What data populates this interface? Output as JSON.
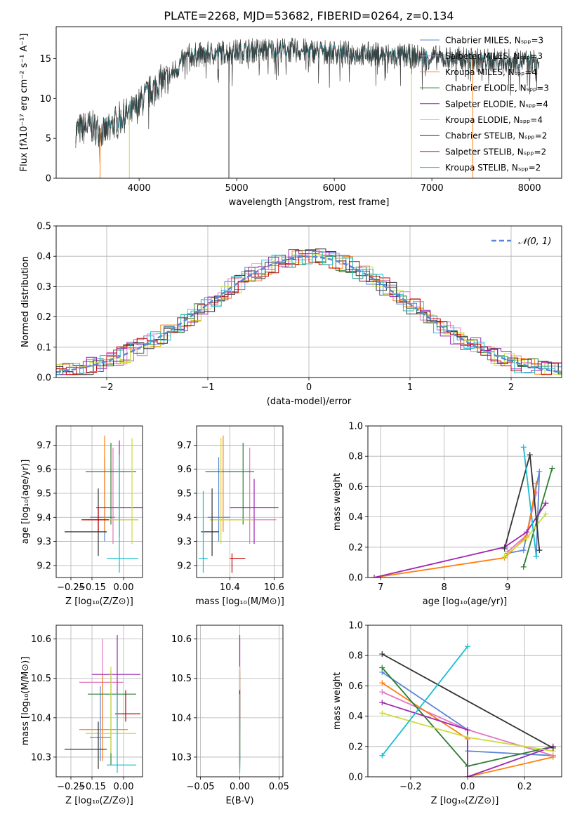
{
  "figure": {
    "title": "PLATE=2268, MJD=53682, FIBERID=0264, z=0.134"
  },
  "colors": {
    "series": [
      "#5b86d4",
      "#e377c2",
      "#ff7f0e",
      "#2e7d32",
      "#9c27b0",
      "#cddc39",
      "#333333",
      "#c00000",
      "#17becf"
    ],
    "grid": "#b0b0b0",
    "gaussian": "#5b86d4"
  },
  "chart_data": [
    {
      "id": "spectrum",
      "type": "line",
      "xlabel": "wavelength [Angstrom, rest frame]",
      "ylabel": "Flux [fλ10⁻¹⁷ erg cm⁻² s⁻¹ A⁻¹]",
      "xlim": [
        3150,
        8330
      ],
      "ylim": [
        0,
        19
      ],
      "xticks": [
        4000,
        5000,
        6000,
        7000,
        8000
      ],
      "yticks": [
        0,
        5,
        10,
        15
      ],
      "grid": false,
      "legend_position": "right",
      "legend": [
        "Chabrier MILES, Nₛₚₚ=3",
        "Salpeter MILES, Nₛₚₚ=3",
        "Kroupa MILES, Nₛₚₚ=4",
        "Chabrier ELODIE, Nₛₚₚ=3",
        "Salpeter ELODIE, Nₛₚₚ=4",
        "Kroupa ELODIE, Nₛₚₚ=4",
        "Chabrier STELIB, Nₛₚₚ=2",
        "Salpeter STELIB, Nₛₚₚ=2",
        "Kroupa STELIB, Nₛₚₚ=2"
      ],
      "continuum": [
        [
          3350,
          6.0
        ],
        [
          3500,
          6.5
        ],
        [
          3650,
          5.8
        ],
        [
          3800,
          7.5
        ],
        [
          3950,
          8.5
        ],
        [
          4050,
          10.0
        ],
        [
          4200,
          12.0
        ],
        [
          4300,
          12.6
        ],
        [
          4400,
          14.0
        ],
        [
          4500,
          15.4
        ],
        [
          4700,
          15.6
        ],
        [
          4900,
          15.8
        ],
        [
          5100,
          16.0
        ],
        [
          5400,
          16.1
        ],
        [
          5700,
          16.0
        ],
        [
          6000,
          15.8
        ],
        [
          6300,
          15.6
        ],
        [
          6600,
          15.4
        ],
        [
          6900,
          15.2
        ],
        [
          7200,
          15.0
        ],
        [
          7500,
          14.8
        ],
        [
          7800,
          14.7
        ],
        [
          8100,
          14.6
        ]
      ],
      "dropouts": [
        {
          "x": 3600,
          "color_index": 2
        },
        {
          "x": 3900,
          "color_index": 5
        },
        {
          "x": 4920,
          "color_index": 6
        },
        {
          "x": 6790,
          "color_index": 5
        },
        {
          "x": 7420,
          "color_index": 2
        }
      ]
    },
    {
      "id": "residuals",
      "type": "line",
      "xlabel": "(data-model)/error",
      "ylabel": "Normed distribution",
      "xlim": [
        -2.5,
        2.5
      ],
      "ylim": [
        0,
        0.5
      ],
      "xticks": [
        -2,
        -1,
        0,
        1,
        2
      ],
      "yticks": [
        0.0,
        0.1,
        0.2,
        0.3,
        0.4,
        0.5
      ],
      "grid": true,
      "legend_position": "top-right",
      "legend": [
        "𝒩(0, 1)"
      ],
      "bin_width": 0.1
    },
    {
      "id": "age-vs-Z",
      "type": "scatter",
      "xlabel": "Z [log₁₀(Z/Z⊙)]",
      "ylabel": "age  [log₁₀(age/yr)]",
      "xlim": [
        -0.32,
        0.09
      ],
      "ylim": [
        9.15,
        9.78
      ],
      "xticks": [
        -0.25,
        -0.15,
        0.0
      ],
      "yticks": [
        9.2,
        9.3,
        9.4,
        9.5,
        9.6,
        9.7
      ],
      "grid": true,
      "points": [
        {
          "x": -0.09,
          "y": 9.4,
          "xerr": [
            0.07,
            0.05
          ],
          "yerr": [
            0.1,
            0.25
          ],
          "color_index": 0
        },
        {
          "x": -0.05,
          "y": 9.39,
          "xerr": [
            0.12,
            0.12
          ],
          "yerr": [
            0.1,
            0.3
          ],
          "color_index": 1
        },
        {
          "x": -0.09,
          "y": 9.39,
          "xerr": [
            0.1,
            0.05
          ],
          "yerr": [
            0.05,
            0.35
          ],
          "color_index": 2
        },
        {
          "x": -0.06,
          "y": 9.59,
          "xerr": [
            0.12,
            0.12
          ],
          "yerr": [
            0.22,
            0.12
          ],
          "color_index": 3
        },
        {
          "x": -0.02,
          "y": 9.44,
          "xerr": [
            0.11,
            0.12
          ],
          "yerr": [
            0.12,
            0.28
          ],
          "color_index": 4
        },
        {
          "x": 0.04,
          "y": 9.39,
          "xerr": [
            0.12,
            0.03
          ],
          "yerr": [
            0.1,
            0.34
          ],
          "color_index": 5
        },
        {
          "x": -0.12,
          "y": 9.34,
          "xerr": [
            0.16,
            0.04
          ],
          "yerr": [
            0.1,
            0.18
          ],
          "color_index": 6
        },
        {
          "x": -0.12,
          "y": 9.39,
          "xerr": [
            0.08,
            0.05
          ],
          "yerr": [
            0.05,
            0.05
          ],
          "color_index": 7
        },
        {
          "x": -0.02,
          "y": 9.23,
          "xerr": [
            0.06,
            0.09
          ],
          "yerr": [
            0.06,
            0.43
          ],
          "color_index": 8
        }
      ]
    },
    {
      "id": "age-vs-mass",
      "type": "scatter",
      "xlabel": "mass [log₁₀(M/M⊙)]",
      "ylabel": "",
      "xlim": [
        10.25,
        10.64
      ],
      "ylim": [
        9.15,
        9.78
      ],
      "xticks": [
        10.4,
        10.6
      ],
      "yticks": [
        9.2,
        9.3,
        9.4,
        9.5,
        9.6,
        9.7
      ],
      "grid": true,
      "points": [
        {
          "x": 10.35,
          "y": 9.4,
          "xerr": [
            0.05,
            0.05
          ],
          "yerr": [
            0.1,
            0.25
          ],
          "color_index": 0
        },
        {
          "x": 10.49,
          "y": 9.39,
          "xerr": [
            0.12,
            0.12
          ],
          "yerr": [
            0.1,
            0.3
          ],
          "color_index": 1
        },
        {
          "x": 10.37,
          "y": 9.39,
          "xerr": [
            0.06,
            0.06
          ],
          "yerr": [
            0.05,
            0.35
          ],
          "color_index": 2
        },
        {
          "x": 10.46,
          "y": 9.59,
          "xerr": [
            0.17,
            0.05
          ],
          "yerr": [
            0.22,
            0.12
          ],
          "color_index": 3
        },
        {
          "x": 10.51,
          "y": 9.44,
          "xerr": [
            0.11,
            0.11
          ],
          "yerr": [
            0.15,
            0.12
          ],
          "color_index": 4
        },
        {
          "x": 10.36,
          "y": 9.39,
          "xerr": [
            0.05,
            0.15
          ],
          "yerr": [
            0.1,
            0.34
          ],
          "color_index": 5
        },
        {
          "x": 10.32,
          "y": 9.34,
          "xerr": [
            0.05,
            0.03
          ],
          "yerr": [
            0.1,
            0.18
          ],
          "color_index": 6
        },
        {
          "x": 10.41,
          "y": 9.23,
          "xerr": [
            0.01,
            0.06
          ],
          "yerr": [
            0.06,
            0.02
          ],
          "color_index": 7
        },
        {
          "x": 10.28,
          "y": 9.23,
          "xerr": [
            0.02,
            0.02
          ],
          "yerr": [
            0.06,
            0.28
          ],
          "color_index": 8
        }
      ]
    },
    {
      "id": "weight-vs-age",
      "type": "line",
      "xlabel": "age  [log₁₀(age/yr)]",
      "ylabel": "mass weight",
      "xlim": [
        6.8,
        9.85
      ],
      "ylim": [
        0,
        1.0
      ],
      "xticks": [
        7,
        8,
        9
      ],
      "yticks": [
        0.0,
        0.2,
        0.4,
        0.6,
        0.8,
        1.0
      ],
      "grid": true,
      "series": [
        {
          "color_index": 0,
          "x": [
            9.0,
            9.25,
            9.5,
            9.45
          ],
          "y": [
            0.16,
            0.18,
            0.7,
            0.14
          ]
        },
        {
          "color_index": 1,
          "x": [
            9.0,
            9.3,
            9.45
          ],
          "y": [
            0.17,
            0.28,
            0.56
          ]
        },
        {
          "color_index": 2,
          "x": [
            6.9,
            8.95,
            9.3,
            9.45
          ],
          "y": [
            0.0,
            0.13,
            0.27,
            0.62
          ]
        },
        {
          "color_index": 3,
          "x": [
            9.25,
            9.7
          ],
          "y": [
            0.07,
            0.72
          ]
        },
        {
          "color_index": 4,
          "x": [
            6.9,
            8.95,
            9.3,
            9.6
          ],
          "y": [
            0.0,
            0.2,
            0.3,
            0.49
          ]
        },
        {
          "color_index": 5,
          "x": [
            8.95,
            9.3,
            9.6
          ],
          "y": [
            0.14,
            0.26,
            0.42
          ]
        },
        {
          "color_index": 6,
          "x": [
            8.95,
            9.35,
            9.5
          ],
          "y": [
            0.19,
            0.81,
            0.18
          ]
        },
        {
          "color_index": 8,
          "x": [
            9.25,
            9.45
          ],
          "y": [
            0.86,
            0.14
          ]
        }
      ]
    },
    {
      "id": "mass-vs-Z",
      "type": "scatter",
      "xlabel": "Z [log₁₀(Z/Z⊙)]",
      "ylabel": "mass [log₁₀(M/M⊙)]",
      "xlim": [
        -0.32,
        0.09
      ],
      "ylim": [
        10.25,
        10.635
      ],
      "xticks": [
        -0.25,
        -0.15,
        0.0
      ],
      "yticks": [
        10.3,
        10.4,
        10.5,
        10.6
      ],
      "grid": true,
      "points": [
        {
          "x": -0.11,
          "y": 10.35,
          "xerr": [
            0.05,
            0.05
          ],
          "yerr": [
            0.06,
            0.13
          ],
          "color_index": 0
        },
        {
          "x": -0.1,
          "y": 10.49,
          "xerr": [
            0.11,
            0.1
          ],
          "yerr": [
            0.13,
            0.11
          ],
          "color_index": 1
        },
        {
          "x": -0.1,
          "y": 10.37,
          "xerr": [
            0.11,
            0.12
          ],
          "yerr": [
            0.08,
            0.14
          ],
          "color_index": 2
        },
        {
          "x": -0.06,
          "y": 10.46,
          "xerr": [
            0.11,
            0.12
          ],
          "yerr": [
            0.18,
            0.06
          ],
          "color_index": 3
        },
        {
          "x": -0.03,
          "y": 10.51,
          "xerr": [
            0.12,
            0.11
          ],
          "yerr": [
            0.14,
            0.1
          ],
          "color_index": 4
        },
        {
          "x": -0.06,
          "y": 10.36,
          "xerr": [
            0.12,
            0.12
          ],
          "yerr": [
            0.05,
            0.17
          ],
          "color_index": 5
        },
        {
          "x": -0.12,
          "y": 10.32,
          "xerr": [
            0.16,
            0.04
          ],
          "yerr": [
            0.05,
            0.07
          ],
          "color_index": 6
        },
        {
          "x": 0.01,
          "y": 10.41,
          "xerr": [
            0.05,
            0.07
          ],
          "yerr": [
            0.02,
            0.06
          ],
          "color_index": 7
        },
        {
          "x": -0.03,
          "y": 10.28,
          "xerr": [
            0.05,
            0.09
          ],
          "yerr": [
            0.02,
            0.18
          ],
          "color_index": 8
        }
      ]
    },
    {
      "id": "mass-vs-ebv",
      "type": "scatter",
      "xlabel": "E(B-V)",
      "ylabel": "",
      "xlim": [
        -0.055,
        0.055
      ],
      "ylim": [
        10.25,
        10.635
      ],
      "xticks": [
        -0.05,
        0.0,
        0.05
      ],
      "yticks": [
        10.3,
        10.4,
        10.5,
        10.6
      ],
      "grid": true,
      "points": [
        {
          "x": 0.0,
          "y": 10.35,
          "xerr": [
            0,
            0
          ],
          "yerr": [
            0.06,
            0.13
          ],
          "color_index": 0
        },
        {
          "x": 0.0,
          "y": 10.49,
          "xerr": [
            0,
            0
          ],
          "yerr": [
            0.13,
            0.11
          ],
          "color_index": 1
        },
        {
          "x": 0.0,
          "y": 10.37,
          "xerr": [
            0,
            0
          ],
          "yerr": [
            0.08,
            0.14
          ],
          "color_index": 2
        },
        {
          "x": 0.0,
          "y": 10.46,
          "xerr": [
            0,
            0
          ],
          "yerr": [
            0.18,
            0.06
          ],
          "color_index": 3
        },
        {
          "x": 0.0,
          "y": 10.51,
          "xerr": [
            0,
            0
          ],
          "yerr": [
            0.14,
            0.1
          ],
          "color_index": 4
        },
        {
          "x": 0.0,
          "y": 10.36,
          "xerr": [
            0,
            0
          ],
          "yerr": [
            0.05,
            0.17
          ],
          "color_index": 5
        },
        {
          "x": 0.0,
          "y": 10.32,
          "xerr": [
            0,
            0
          ],
          "yerr": [
            0.05,
            0.07
          ],
          "color_index": 6
        },
        {
          "x": 0.0,
          "y": 10.41,
          "xerr": [
            0,
            0
          ],
          "yerr": [
            0.02,
            0.06
          ],
          "color_index": 7
        },
        {
          "x": 0.0,
          "y": 10.28,
          "xerr": [
            0,
            0
          ],
          "yerr": [
            0.02,
            0.18
          ],
          "color_index": 8
        }
      ]
    },
    {
      "id": "weight-vs-Z",
      "type": "line",
      "xlabel": "Z [log₁₀(Z/Z⊙)]",
      "ylabel": "mass weight",
      "xlim": [
        -0.35,
        0.33
      ],
      "ylim": [
        0,
        1.0
      ],
      "xticks": [
        -0.2,
        0.0,
        0.2
      ],
      "yticks": [
        0.0,
        0.2,
        0.4,
        0.6,
        0.8,
        1.0
      ],
      "grid": true,
      "series": [
        {
          "color_index": 0,
          "x": [
            -0.3,
            0.0,
            0.0,
            0.3
          ],
          "y": [
            0.69,
            0.31,
            0.17,
            0.14
          ]
        },
        {
          "color_index": 1,
          "x": [
            -0.3,
            0.0,
            0.3
          ],
          "y": [
            0.56,
            0.31,
            0.14
          ]
        },
        {
          "color_index": 2,
          "x": [
            -0.3,
            0.0,
            0.0,
            0.3
          ],
          "y": [
            0.62,
            0.25,
            0.0,
            0.13
          ]
        },
        {
          "color_index": 3,
          "x": [
            -0.3,
            0.0,
            0.3
          ],
          "y": [
            0.72,
            0.07,
            0.2
          ]
        },
        {
          "color_index": 4,
          "x": [
            -0.3,
            0.0,
            0.0,
            0.3
          ],
          "y": [
            0.49,
            0.31,
            0.0,
            0.2
          ]
        },
        {
          "color_index": 5,
          "x": [
            -0.3,
            0.0,
            0.3
          ],
          "y": [
            0.42,
            0.26,
            0.17
          ]
        },
        {
          "color_index": 6,
          "x": [
            -0.3,
            0.3
          ],
          "y": [
            0.81,
            0.19
          ]
        },
        {
          "color_index": 8,
          "x": [
            -0.3,
            0.0
          ],
          "y": [
            0.14,
            0.86
          ]
        }
      ]
    }
  ]
}
